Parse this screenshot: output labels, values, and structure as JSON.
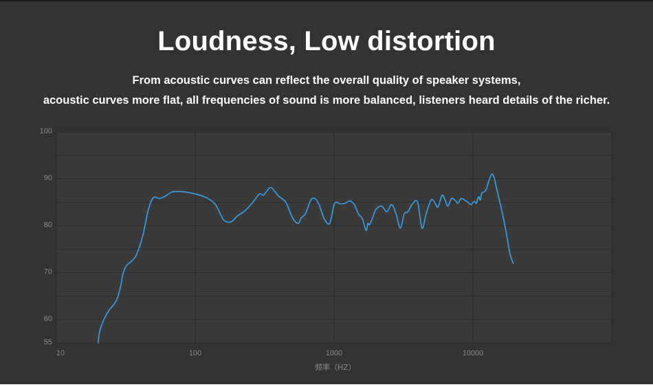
{
  "header": {
    "title": "Loudness, Low distortion",
    "subtitle_line1": "From acoustic curves can reflect the overall quality of speaker systems,",
    "subtitle_line2": "acoustic curves more flat, all frequencies of sound is more balanced, listeners heard details of the richer."
  },
  "colors": {
    "background": "#333333",
    "plot_background": "#3a3a3a",
    "grid": "#2b2b2b",
    "curve": "#3aa0e8"
  },
  "chart_data": {
    "type": "line",
    "xlabel": "频率（HZ）",
    "ylabel": "",
    "x_scale": "log",
    "xlim": [
      10,
      100000
    ],
    "ylim": [
      55,
      100
    ],
    "x_ticks": [
      10,
      100,
      1000,
      10000
    ],
    "x_tick_labels": [
      "10",
      "100",
      "1000",
      "10000"
    ],
    "y_ticks": [
      55,
      60,
      70,
      80,
      90,
      100
    ],
    "y_tick_labels": [
      "55",
      "60",
      "70",
      "80",
      "90",
      "100"
    ],
    "grid": true,
    "series": [
      {
        "x": [
          20,
          20.5,
          22,
          24,
          27,
          29,
          30,
          32,
          35,
          38,
          42,
          46,
          50,
          55,
          60,
          68,
          75,
          85,
          100,
          120,
          140,
          160,
          180,
          200,
          230,
          260,
          290,
          310,
          330,
          350,
          370,
          400,
          450,
          500,
          550,
          580,
          620,
          680,
          730,
          780,
          850,
          930,
          1000,
          1050,
          1100,
          1200,
          1300,
          1400,
          1500,
          1600,
          1700,
          1750,
          1800,
          1900,
          2000,
          2200,
          2400,
          2600,
          2800,
          3000,
          3200,
          3400,
          3700,
          4000,
          4300,
          4600,
          5000,
          5300,
          5600,
          6000,
          6300,
          6600,
          7000,
          7400,
          7800,
          8200,
          8700,
          9200,
          9700,
          10000,
          10300,
          10600,
          11000,
          11300,
          11600,
          12000,
          12500,
          13000,
          13700,
          14300,
          14800,
          15500,
          16500,
          17500,
          18500,
          19500
        ],
        "y": [
          55,
          57.5,
          60,
          62,
          64,
          67,
          69.5,
          71.5,
          72.5,
          74,
          78,
          83.5,
          86,
          85.8,
          86.2,
          87.2,
          87.3,
          87.2,
          86.8,
          86,
          84.5,
          81.3,
          80.8,
          82,
          83.3,
          85,
          86.8,
          86.5,
          87.5,
          88.2,
          87.5,
          86.3,
          85,
          81.8,
          80.5,
          81.7,
          82.5,
          85.5,
          85.8,
          84.5,
          81.5,
          80.5,
          84.5,
          85,
          84.7,
          84.8,
          85.3,
          84.5,
          82.5,
          81.5,
          79,
          80.5,
          80.2,
          81.8,
          83.5,
          84.2,
          83,
          84.5,
          82.5,
          79.5,
          82.5,
          83,
          84.8,
          85,
          79.5,
          82.5,
          85.5,
          85,
          84,
          86.5,
          85.5,
          84.2,
          85.8,
          85.5,
          84.8,
          85.8,
          85.5,
          85,
          84.5,
          85,
          85.2,
          84.8,
          86.2,
          85.5,
          87,
          87.2,
          87.8,
          89.5,
          91,
          90,
          88,
          85.5,
          82,
          78,
          74,
          72
        ]
      }
    ]
  }
}
